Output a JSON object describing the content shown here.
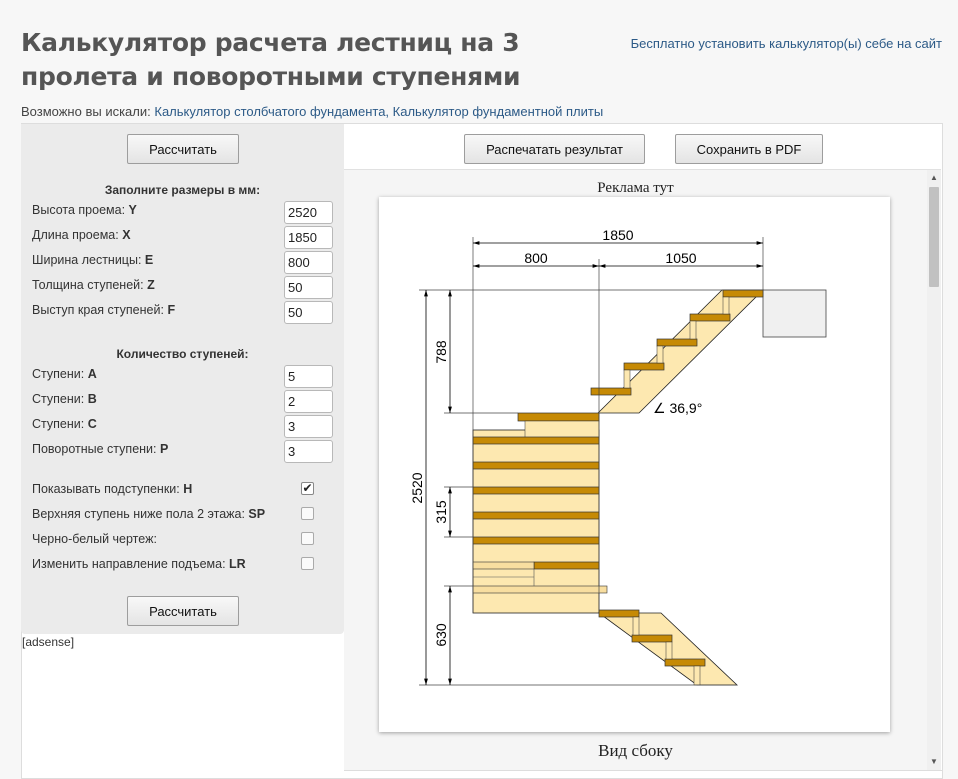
{
  "header": {
    "title": "Калькулятор расчета лестниц на 3 пролета и поворотными ступенями",
    "install_link": "Бесплатно установить калькулятор(ы) себе на сайт"
  },
  "maybe": {
    "prefix": "Возможно вы искали:",
    "links": [
      "Калькулятор столбчатого фундамента,",
      "Калькулятор фундаментной плиты"
    ]
  },
  "form": {
    "calc_button": "Рассчитать",
    "sizes_title": "Заполните размеры в мм:",
    "sizes": [
      {
        "label": "Высота проема:",
        "code": "Y",
        "value": "2520"
      },
      {
        "label": "Длина проема:",
        "code": "X",
        "value": "1850"
      },
      {
        "label": "Ширина лестницы:",
        "code": "E",
        "value": "800"
      },
      {
        "label": "Толщина ступеней:",
        "code": "Z",
        "value": "50"
      },
      {
        "label": "Выступ края ступеней:",
        "code": "F",
        "value": "50"
      }
    ],
    "steps_title": "Количество ступеней:",
    "steps": [
      {
        "label": "Ступени:",
        "code": "A",
        "value": "5"
      },
      {
        "label": "Ступени:",
        "code": "B",
        "value": "2"
      },
      {
        "label": "Ступени:",
        "code": "C",
        "value": "3"
      },
      {
        "label": "Поворотные ступени:",
        "code": "P",
        "value": "3"
      }
    ],
    "options": [
      {
        "label": "Показывать подступенки:",
        "code": "H",
        "checked": true
      },
      {
        "label": "Верхняя ступень ниже пола 2 этажа:",
        "code": "SP",
        "checked": false
      },
      {
        "label": "Черно-белый чертеж:",
        "code": "",
        "checked": false
      },
      {
        "label": "Изменить направление подъема:",
        "code": "LR",
        "checked": false
      }
    ],
    "calc_button_bottom": "Рассчитать",
    "adsense": "[adsense]"
  },
  "result": {
    "print_button": "Распечатать результат",
    "pdf_button": "Сохранить в PDF",
    "ad_text": "Реклама тут",
    "caption": "Вид сбоку"
  },
  "drawing": {
    "dim_total_length": "1850",
    "dim_left": "800",
    "dim_right": "1050",
    "dim_upper_height": "788",
    "dim_total_height": "2520",
    "dim_step_height": "315",
    "dim_lower_height": "630",
    "angle": "∠ 36,9°"
  },
  "colors": {
    "step_fill": "#c68a05",
    "stringer_fill": "#fde8b0",
    "link": "#2c5a87"
  }
}
